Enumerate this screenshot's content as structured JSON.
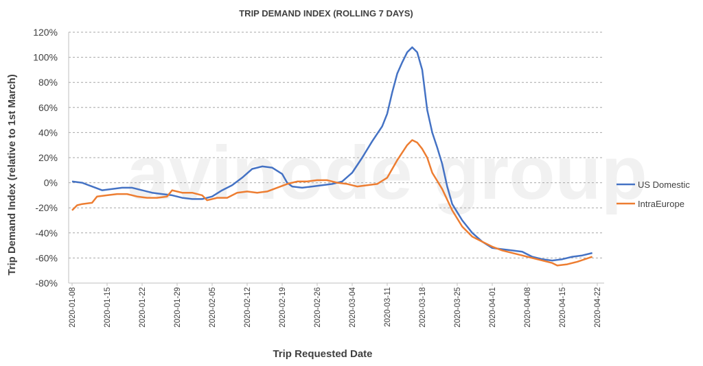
{
  "chart_data": {
    "type": "line",
    "title": "TRIP DEMAND INDEX (ROLLING 7 DAYS)",
    "xlabel": "Trip  Requested Date",
    "ylabel": "Trip Demand Index (relative to 1st March)",
    "ylim": [
      -80,
      120
    ],
    "y_ticks": [
      "120%",
      "100%",
      "80%",
      "60%",
      "40%",
      "20%",
      "0%",
      "-20%",
      "-40%",
      "-60%",
      "-80%"
    ],
    "x_ticks": [
      "2020-01-08",
      "2020-01-15",
      "2020-01-22",
      "2020-01-29",
      "2020-02-05",
      "2020-02-12",
      "2020-02-19",
      "2020-02-26",
      "2020-03-04",
      "2020-03-11",
      "2020-03-18",
      "2020-03-25",
      "2020-04-01",
      "2020-04-08",
      "2020-04-15",
      "2020-04-22"
    ],
    "grid": true,
    "legend_position": "right",
    "watermark": "avinode group",
    "series": [
      {
        "name": "US Domestic",
        "color": "#4472C4",
        "points": [
          [
            "2020-01-08",
            1
          ],
          [
            "2020-01-10",
            0
          ],
          [
            "2020-01-12",
            -3
          ],
          [
            "2020-01-14",
            -6
          ],
          [
            "2020-01-16",
            -5
          ],
          [
            "2020-01-18",
            -4
          ],
          [
            "2020-01-20",
            -4
          ],
          [
            "2020-01-22",
            -6
          ],
          [
            "2020-01-24",
            -8
          ],
          [
            "2020-01-26",
            -9
          ],
          [
            "2020-01-28",
            -10
          ],
          [
            "2020-01-30",
            -12
          ],
          [
            "2020-02-01",
            -13
          ],
          [
            "2020-02-03",
            -13
          ],
          [
            "2020-02-05",
            -11
          ],
          [
            "2020-02-07",
            -6
          ],
          [
            "2020-02-09",
            -2
          ],
          [
            "2020-02-11",
            4
          ],
          [
            "2020-02-13",
            11
          ],
          [
            "2020-02-15",
            13
          ],
          [
            "2020-02-17",
            12
          ],
          [
            "2020-02-19",
            7
          ],
          [
            "2020-02-20",
            0
          ],
          [
            "2020-02-21",
            -3
          ],
          [
            "2020-02-23",
            -4
          ],
          [
            "2020-02-25",
            -3
          ],
          [
            "2020-02-27",
            -2
          ],
          [
            "2020-02-29",
            -1
          ],
          [
            "2020-03-02",
            1
          ],
          [
            "2020-03-04",
            8
          ],
          [
            "2020-03-06",
            20
          ],
          [
            "2020-03-08",
            33
          ],
          [
            "2020-03-10",
            45
          ],
          [
            "2020-03-11",
            55
          ],
          [
            "2020-03-12",
            72
          ],
          [
            "2020-03-13",
            87
          ],
          [
            "2020-03-14",
            96
          ],
          [
            "2020-03-15",
            104
          ],
          [
            "2020-03-16",
            108
          ],
          [
            "2020-03-17",
            104
          ],
          [
            "2020-03-18",
            90
          ],
          [
            "2020-03-19",
            58
          ],
          [
            "2020-03-20",
            40
          ],
          [
            "2020-03-21",
            28
          ],
          [
            "2020-03-22",
            15
          ],
          [
            "2020-03-23",
            -3
          ],
          [
            "2020-03-24",
            -17
          ],
          [
            "2020-03-26",
            -30
          ],
          [
            "2020-03-28",
            -40
          ],
          [
            "2020-03-30",
            -47
          ],
          [
            "2020-04-01",
            -52
          ],
          [
            "2020-04-03",
            -53
          ],
          [
            "2020-04-05",
            -54
          ],
          [
            "2020-04-07",
            -55
          ],
          [
            "2020-04-09",
            -59
          ],
          [
            "2020-04-11",
            -61
          ],
          [
            "2020-04-13",
            -62
          ],
          [
            "2020-04-15",
            -61
          ],
          [
            "2020-04-17",
            -59
          ],
          [
            "2020-04-19",
            -58
          ],
          [
            "2020-04-21",
            -56
          ]
        ]
      },
      {
        "name": "IntraEurope",
        "color": "#ED7D31",
        "points": [
          [
            "2020-01-08",
            -22
          ],
          [
            "2020-01-09",
            -18
          ],
          [
            "2020-01-10",
            -17
          ],
          [
            "2020-01-12",
            -16
          ],
          [
            "2020-01-13",
            -11
          ],
          [
            "2020-01-15",
            -10
          ],
          [
            "2020-01-17",
            -9
          ],
          [
            "2020-01-19",
            -9
          ],
          [
            "2020-01-21",
            -11
          ],
          [
            "2020-01-23",
            -12
          ],
          [
            "2020-01-25",
            -12
          ],
          [
            "2020-01-27",
            -11
          ],
          [
            "2020-01-28",
            -6
          ],
          [
            "2020-01-30",
            -8
          ],
          [
            "2020-02-01",
            -8
          ],
          [
            "2020-02-03",
            -10
          ],
          [
            "2020-02-04",
            -14
          ],
          [
            "2020-02-06",
            -12
          ],
          [
            "2020-02-08",
            -12
          ],
          [
            "2020-02-10",
            -8
          ],
          [
            "2020-02-12",
            -7
          ],
          [
            "2020-02-14",
            -8
          ],
          [
            "2020-02-16",
            -7
          ],
          [
            "2020-02-18",
            -4
          ],
          [
            "2020-02-20",
            -1
          ],
          [
            "2020-02-22",
            1
          ],
          [
            "2020-02-24",
            1
          ],
          [
            "2020-02-26",
            2
          ],
          [
            "2020-02-28",
            2
          ],
          [
            "2020-03-01",
            0
          ],
          [
            "2020-03-03",
            -1
          ],
          [
            "2020-03-05",
            -3
          ],
          [
            "2020-03-07",
            -2
          ],
          [
            "2020-03-09",
            -1
          ],
          [
            "2020-03-11",
            4
          ],
          [
            "2020-03-13",
            18
          ],
          [
            "2020-03-15",
            30
          ],
          [
            "2020-03-16",
            34
          ],
          [
            "2020-03-17",
            32
          ],
          [
            "2020-03-18",
            27
          ],
          [
            "2020-03-19",
            20
          ],
          [
            "2020-03-20",
            8
          ],
          [
            "2020-03-22",
            -5
          ],
          [
            "2020-03-24",
            -22
          ],
          [
            "2020-03-26",
            -35
          ],
          [
            "2020-03-28",
            -43
          ],
          [
            "2020-03-30",
            -47
          ],
          [
            "2020-04-01",
            -51
          ],
          [
            "2020-04-03",
            -54
          ],
          [
            "2020-04-05",
            -56
          ],
          [
            "2020-04-07",
            -58
          ],
          [
            "2020-04-09",
            -60
          ],
          [
            "2020-04-11",
            -62
          ],
          [
            "2020-04-13",
            -64
          ],
          [
            "2020-04-14",
            -66
          ],
          [
            "2020-04-16",
            -65
          ],
          [
            "2020-04-18",
            -63
          ],
          [
            "2020-04-21",
            -59
          ]
        ]
      }
    ]
  }
}
